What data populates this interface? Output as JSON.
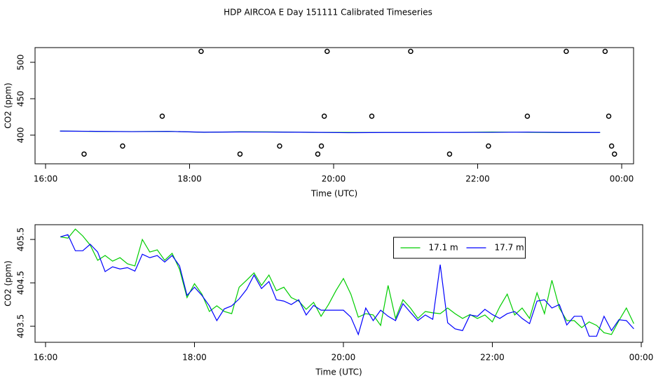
{
  "chart_data": [
    {
      "type": "line",
      "title": "HDP AIRCOA E  Day 151111  Calibrated Timeseries",
      "x_label": "Time (UTC)",
      "y_label": "CO2 (ppm)",
      "xlim": [
        15.854,
        24.165
      ],
      "ylim": [
        360.6,
        520.2
      ],
      "xticks": [
        {
          "value": 16,
          "label": "16:00"
        },
        {
          "value": 18,
          "label": "18:00"
        },
        {
          "value": 20,
          "label": "20:00"
        },
        {
          "value": 22,
          "label": "22:00"
        },
        {
          "value": 24,
          "label": "00:00"
        }
      ],
      "yticks": [
        400,
        450,
        500
      ],
      "series": [
        {
          "type": "scatter",
          "color": "#000000",
          "x": [
            16.535,
            17.07,
            17.62,
            18.16,
            18.7,
            19.25,
            19.78,
            19.83,
            19.87,
            19.91,
            20.53,
            21.07,
            21.61,
            22.15,
            22.69,
            23.23,
            23.77,
            23.82,
            23.86,
            23.9
          ],
          "values": [
            374,
            385,
            426,
            515,
            374,
            385,
            374,
            385,
            426,
            515,
            426,
            515,
            374,
            385,
            426,
            515,
            515,
            426,
            385,
            374
          ]
        },
        {
          "type": "line",
          "color": "#00cd00",
          "x": [
            16.2,
            16.7,
            17.2,
            17.7,
            18.2,
            18.7,
            19.2,
            19.7,
            20.2,
            20.7,
            21.2,
            21.7,
            22.2,
            22.7,
            23.2,
            23.7
          ],
          "values": [
            405.56,
            405.02,
            404.89,
            405.18,
            403.84,
            404.56,
            404.4,
            403.73,
            403.71,
            403.68,
            403.81,
            403.77,
            404.24,
            403.79,
            403.47,
            403.63
          ]
        },
        {
          "type": "line",
          "color": "#0000ff",
          "x": [
            16.2,
            16.7,
            17.2,
            17.7,
            18.2,
            18.7,
            19.2,
            19.7,
            20.2,
            20.7,
            21.2,
            21.7,
            22.2,
            22.7,
            23.2,
            23.7
          ],
          "values": [
            405.56,
            405.21,
            404.77,
            405.13,
            403.97,
            404.35,
            404.08,
            403.87,
            403.31,
            403.63,
            403.66,
            403.76,
            403.79,
            404.11,
            403.73,
            403.65
          ]
        }
      ]
    },
    {
      "type": "line",
      "x_label": "Time (UTC)",
      "y_label": "CO2 (ppm)",
      "xlim": [
        15.859,
        24.019
      ],
      "ylim": [
        403.13,
        405.84
      ],
      "xticks": [
        {
          "value": 16,
          "label": "16:00"
        },
        {
          "value": 18,
          "label": "18:00"
        },
        {
          "value": 20,
          "label": "20:00"
        },
        {
          "value": 22,
          "label": "22:00"
        },
        {
          "value": 24,
          "label": "00:00"
        }
      ],
      "yticks": [
        403.5,
        404.5,
        405.5
      ],
      "legend": "top",
      "x": [
        16.2,
        16.3,
        16.4,
        16.5,
        16.6,
        16.7,
        16.8,
        16.9,
        17.0,
        17.1,
        17.2,
        17.3,
        17.4,
        17.5,
        17.6,
        17.7,
        17.8,
        17.9,
        18.0,
        18.1,
        18.2,
        18.3,
        18.4,
        18.5,
        18.6,
        18.7,
        18.8,
        18.9,
        19.0,
        19.1,
        19.2,
        19.3,
        19.4,
        19.5,
        19.6,
        19.7,
        19.8,
        19.9,
        20.0,
        20.1,
        20.2,
        20.3,
        20.4,
        20.5,
        20.6,
        20.7,
        20.8,
        20.9,
        21.0,
        21.1,
        21.2,
        21.3,
        21.4,
        21.5,
        21.6,
        21.7,
        21.8,
        21.9,
        22.0,
        22.1,
        22.2,
        22.3,
        22.4,
        22.5,
        22.6,
        22.7,
        22.8,
        22.9,
        23.0,
        23.1,
        23.2,
        23.3,
        23.4,
        23.5,
        23.6,
        23.7,
        23.8,
        23.9
      ],
      "series": [
        {
          "type": "line",
          "name": "17.1 m",
          "color": "#00cd00",
          "values": [
            405.56,
            405.53,
            405.74,
            405.58,
            405.37,
            405.02,
            405.13,
            405.0,
            405.08,
            404.94,
            404.89,
            405.5,
            405.21,
            405.26,
            405.02,
            405.18,
            404.81,
            404.16,
            404.48,
            404.24,
            403.84,
            403.97,
            403.84,
            403.79,
            404.4,
            404.56,
            404.73,
            404.44,
            404.68,
            404.32,
            404.4,
            404.16,
            404.08,
            403.89,
            404.05,
            403.73,
            404.0,
            404.32,
            404.6,
            404.24,
            403.71,
            403.79,
            403.76,
            403.52,
            404.44,
            403.68,
            404.11,
            403.92,
            403.68,
            403.84,
            403.81,
            403.79,
            403.92,
            403.79,
            403.68,
            403.77,
            403.68,
            403.76,
            403.6,
            403.95,
            404.24,
            403.76,
            403.92,
            403.68,
            404.27,
            403.79,
            404.56,
            403.92,
            403.63,
            403.63,
            403.47,
            403.6,
            403.52,
            403.35,
            403.31,
            403.63,
            403.92,
            403.56
          ]
        },
        {
          "type": "line",
          "name": "17.7 m",
          "color": "#0000ff",
          "values": [
            405.56,
            405.61,
            405.24,
            405.24,
            405.39,
            405.21,
            404.76,
            404.87,
            404.82,
            404.85,
            404.77,
            405.16,
            405.08,
            405.13,
            404.98,
            405.13,
            404.89,
            404.21,
            404.4,
            404.21,
            403.97,
            403.63,
            403.9,
            403.97,
            404.13,
            404.35,
            404.68,
            404.37,
            404.53,
            404.11,
            404.08,
            404.0,
            404.11,
            403.76,
            403.98,
            403.87,
            403.87,
            403.87,
            403.87,
            403.71,
            403.31,
            403.92,
            403.63,
            403.87,
            403.73,
            403.63,
            404.02,
            403.82,
            403.63,
            403.76,
            403.66,
            404.92,
            403.58,
            403.44,
            403.4,
            403.76,
            403.73,
            403.89,
            403.77,
            403.68,
            403.79,
            403.84,
            403.68,
            403.56,
            404.08,
            404.11,
            403.92,
            404.0,
            403.53,
            403.73,
            403.73,
            403.27,
            403.27,
            403.73,
            403.4,
            403.65,
            403.63,
            403.44
          ]
        }
      ]
    }
  ]
}
